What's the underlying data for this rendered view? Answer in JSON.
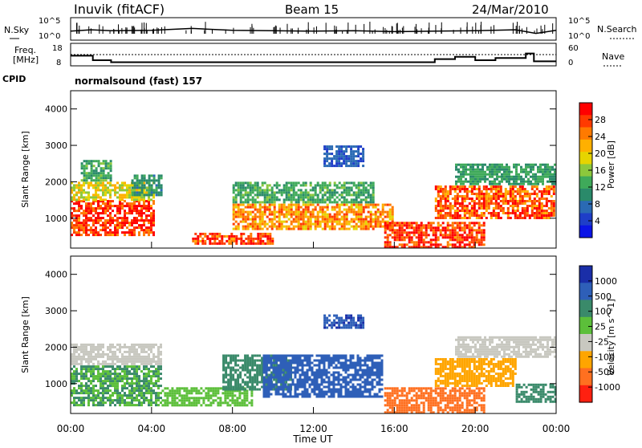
{
  "header": {
    "station": "Inuvik (fitACF)",
    "beam": "Beam 15",
    "date": "24/Mar/2010"
  },
  "noise_panel": {
    "left_label": "N.Sky",
    "right_label": "N.Search",
    "left_ticks": [
      "10^5",
      "10^0"
    ],
    "right_ticks": [
      "10^5",
      "10^0"
    ]
  },
  "freq_panel": {
    "left_label_1": "Freq.",
    "left_label_2": "[MHz]",
    "right_label": "Nave",
    "left_ticks": [
      "18",
      "8"
    ],
    "right_ticks": [
      "60",
      "0"
    ]
  },
  "cpid": {
    "label": "CPID",
    "value": "normalsound (fast) 157"
  },
  "colorbars": {
    "power": {
      "label": "Power [dB]",
      "ticks": [
        "28",
        "24",
        "20",
        "16",
        "12",
        "8",
        "4"
      ],
      "colors": [
        "#ff0000",
        "#ff3a00",
        "#ff7a00",
        "#ffb000",
        "#e6d400",
        "#8cc83c",
        "#3faa5a",
        "#2a8a6a",
        "#2a6ab4",
        "#1e3ec8",
        "#0a14e6"
      ]
    },
    "velocity": {
      "label": "Velocity [m s^-1]",
      "ticks": [
        "1000",
        "500",
        "100",
        "25",
        "-25",
        "-100",
        "-500",
        "-1000"
      ],
      "colors": [
        "#1a2ea8",
        "#2e5fb8",
        "#3a8a6a",
        "#5cbf3a",
        "#c8c8c0",
        "#ffa500",
        "#ff7020",
        "#ff2010"
      ]
    }
  },
  "axes": {
    "ylabel": "Slant Range [km]",
    "xlabel": "Time UT",
    "yticks": [
      "4000",
      "3000",
      "2000",
      "1000"
    ],
    "xticks": [
      "00:00",
      "04:00",
      "08:00",
      "12:00",
      "16:00",
      "20:00",
      "00:00"
    ]
  },
  "chart_data": [
    {
      "type": "heatmap",
      "title": "",
      "variable": "Power [dB]",
      "xlabel": "Time UT",
      "ylabel": "Slant Range [km]",
      "xlim": [
        0,
        24
      ],
      "ylim": [
        180,
        4500
      ],
      "scale": [
        0,
        30
      ],
      "regions": [
        {
          "t0": 0.0,
          "t1": 4.2,
          "r0": 500,
          "r1": 1500,
          "value": 27
        },
        {
          "t0": 0.0,
          "t1": 4.2,
          "r0": 1500,
          "r1": 2000,
          "value": 18
        },
        {
          "t0": 0.5,
          "t1": 2.0,
          "r0": 2000,
          "r1": 2600,
          "value": 12
        },
        {
          "t0": 3.0,
          "t1": 4.5,
          "r0": 1600,
          "r1": 2200,
          "value": 10
        },
        {
          "t0": 6.0,
          "t1": 10.0,
          "r0": 300,
          "r1": 600,
          "value": 26
        },
        {
          "t0": 8.0,
          "t1": 16.0,
          "r0": 700,
          "r1": 1400,
          "value": 22
        },
        {
          "t0": 8.0,
          "t1": 15.0,
          "r0": 1400,
          "r1": 2000,
          "value": 12
        },
        {
          "t0": 15.5,
          "t1": 20.5,
          "r0": 200,
          "r1": 900,
          "value": 27
        },
        {
          "t0": 18.0,
          "t1": 24.0,
          "r0": 1000,
          "r1": 1900,
          "value": 25
        },
        {
          "t0": 19.0,
          "t1": 24.0,
          "r0": 1900,
          "r1": 2500,
          "value": 11
        },
        {
          "t0": 12.5,
          "t1": 14.5,
          "r0": 2400,
          "r1": 3000,
          "value": 6
        }
      ]
    },
    {
      "type": "heatmap",
      "title": "",
      "variable": "Velocity [m s^-1]",
      "xlabel": "Time UT",
      "ylabel": "Slant Range [km]",
      "xlim": [
        0,
        24
      ],
      "ylim": [
        180,
        4500
      ],
      "regions": [
        {
          "t0": 0.0,
          "t1": 4.5,
          "r0": 400,
          "r1": 1500,
          "value": 100
        },
        {
          "t0": 0.0,
          "t1": 4.5,
          "r0": 1500,
          "r1": 2100,
          "value": 0
        },
        {
          "t0": 4.5,
          "t1": 9.0,
          "r0": 400,
          "r1": 900,
          "value": 80
        },
        {
          "t0": 7.5,
          "t1": 11.0,
          "r0": 800,
          "r1": 1800,
          "value": 300
        },
        {
          "t0": 9.5,
          "t1": 15.5,
          "r0": 600,
          "r1": 1800,
          "value": 800
        },
        {
          "t0": 15.5,
          "t1": 20.5,
          "r0": 200,
          "r1": 900,
          "value": -300
        },
        {
          "t0": 18.0,
          "t1": 22.0,
          "r0": 900,
          "r1": 1700,
          "value": -80
        },
        {
          "t0": 19.0,
          "t1": 24.0,
          "r0": 1700,
          "r1": 2300,
          "value": 0
        },
        {
          "t0": 22.0,
          "t1": 24.0,
          "r0": 500,
          "r1": 1000,
          "value": 200
        },
        {
          "t0": 12.5,
          "t1": 14.5,
          "r0": 2500,
          "r1": 2900,
          "value": 900
        }
      ]
    },
    {
      "type": "line",
      "title": "",
      "series": [
        {
          "name": "N.Sky",
          "x": [
            0,
            1,
            2,
            4,
            6,
            8,
            10,
            12,
            14,
            16,
            18,
            20,
            22,
            23,
            24
          ],
          "y": [
            2,
            2.3,
            2.1,
            2.2,
            2.6,
            2.2,
            2.1,
            2.0,
            2.1,
            1.9,
            2.0,
            2.1,
            2.3,
            1.5,
            2.2
          ]
        }
      ]
    },
    {
      "type": "line",
      "title": "",
      "series": [
        {
          "name": "Freq.",
          "x": [
            0,
            1.1,
            1.1,
            2.0,
            2.0,
            18.0,
            18.0,
            19.0,
            19.0,
            20.0,
            20.0,
            21.0,
            21.0,
            22.5,
            22.5,
            22.9,
            22.9,
            24
          ],
          "y": [
            12.5,
            12.5,
            10.5,
            10.5,
            9.6,
            9.6,
            11,
            11,
            12,
            12,
            10.5,
            10.5,
            11.5,
            11.5,
            13.5,
            13.5,
            10,
            10
          ]
        },
        {
          "name": "Nave",
          "x": [
            0,
            24
          ],
          "y": [
            30,
            30
          ]
        }
      ]
    }
  ]
}
